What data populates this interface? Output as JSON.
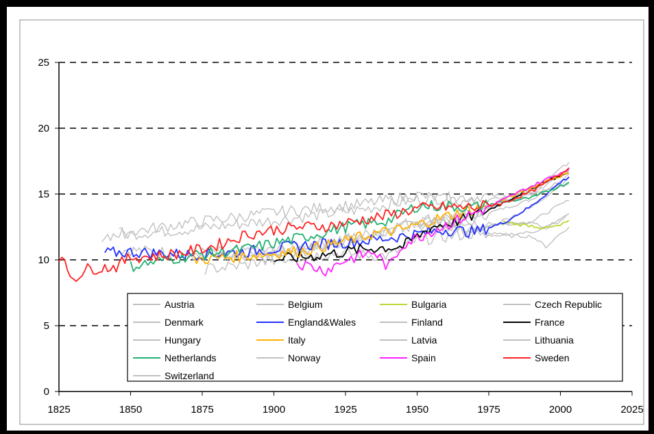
{
  "chart_data": {
    "type": "line",
    "title": "",
    "xlabel": "",
    "ylabel": "",
    "xlim": [
      1825,
      2025
    ],
    "ylim": [
      0,
      25
    ],
    "xticks": [
      1825,
      1850,
      1875,
      1900,
      1925,
      1950,
      1975,
      2000,
      2025
    ],
    "yticks": [
      0,
      5,
      10,
      15,
      20,
      25
    ],
    "grid": "horizontal-dashed",
    "legend_position": "bottom-right",
    "series": [
      {
        "name": "Austria",
        "color": "#c0c0c0",
        "x": [
          1870,
          1890,
          1910,
          1930,
          1950,
          1970,
          1990,
          2003
        ],
        "y": [
          10.3,
          10.4,
          10.8,
          11.5,
          12.8,
          13.2,
          14.6,
          16.5
        ]
      },
      {
        "name": "Belgium",
        "color": "#c0c0c0",
        "x": [
          1845,
          1870,
          1900,
          1930,
          1950,
          1970,
          1990,
          2003
        ],
        "y": [
          10.8,
          10.5,
          10.7,
          11.8,
          13.0,
          13.5,
          15.0,
          16.8
        ]
      },
      {
        "name": "Bulgaria",
        "color": "#b8d830",
        "x": [
          1980,
          1985,
          1990,
          1995,
          2000,
          2003
        ],
        "y": [
          12.9,
          12.7,
          12.6,
          12.4,
          12.6,
          13.0
        ]
      },
      {
        "name": "Czech Republic",
        "color": "#c0c0c0",
        "x": [
          1950,
          1960,
          1970,
          1980,
          1990,
          2000,
          2003
        ],
        "y": [
          12.8,
          13.0,
          12.6,
          12.7,
          12.9,
          14.2,
          14.5
        ]
      },
      {
        "name": "Denmark",
        "color": "#c0c0c0",
        "x": [
          1840,
          1870,
          1900,
          1930,
          1950,
          1970,
          1990,
          2003
        ],
        "y": [
          11.8,
          12.3,
          13.0,
          13.8,
          14.6,
          14.8,
          15.0,
          15.8
        ]
      },
      {
        "name": "England&Wales",
        "color": "#2030ff",
        "x": [
          1841,
          1850,
          1870,
          1890,
          1910,
          1930,
          1945,
          1960,
          1970,
          1980,
          1990,
          2000,
          2003
        ],
        "y": [
          10.5,
          10.6,
          10.4,
          10.6,
          11.1,
          11.4,
          11.8,
          12.3,
          12.1,
          12.8,
          14.1,
          15.9,
          16.3
        ]
      },
      {
        "name": "Finland",
        "color": "#c0c0c0",
        "x": [
          1880,
          1900,
          1920,
          1940,
          1950,
          1970,
          1990,
          2003
        ],
        "y": [
          10.2,
          10.0,
          10.5,
          10.3,
          11.5,
          12.0,
          14.0,
          16.2
        ]
      },
      {
        "name": "France",
        "color": "#000000",
        "x": [
          1900,
          1910,
          1925,
          1935,
          1945,
          1955,
          1965,
          1975,
          1985,
          1995,
          2003
        ],
        "y": [
          10.0,
          10.2,
          10.6,
          10.9,
          11.0,
          12.5,
          13.0,
          13.8,
          14.9,
          16.0,
          16.6
        ]
      },
      {
        "name": "Hungary",
        "color": "#c0c0c0",
        "x": [
          1950,
          1960,
          1970,
          1980,
          1990,
          2000,
          2003
        ],
        "y": [
          12.2,
          12.6,
          12.1,
          11.9,
          12.1,
          12.9,
          13.5
        ]
      },
      {
        "name": "Italy",
        "color": "#ffb000",
        "x": [
          1872,
          1890,
          1910,
          1925,
          1935,
          1945,
          1955,
          1965,
          1975,
          1985,
          1995,
          2003
        ],
        "y": [
          10.0,
          10.3,
          10.7,
          11.4,
          12.0,
          12.3,
          13.0,
          13.6,
          14.1,
          15.0,
          16.0,
          16.6
        ]
      },
      {
        "name": "Latvia",
        "color": "#c0c0c0",
        "x": [
          1960,
          1970,
          1980,
          1990,
          1995,
          2000,
          2003
        ],
        "y": [
          12.6,
          12.0,
          11.8,
          11.8,
          11.0,
          12.0,
          12.5
        ]
      },
      {
        "name": "Lithuania",
        "color": "#c0c0c0",
        "x": [
          1960,
          1970,
          1980,
          1990,
          1995,
          2000,
          2003
        ],
        "y": [
          13.0,
          12.8,
          12.7,
          12.8,
          12.4,
          13.2,
          13.5
        ]
      },
      {
        "name": "Netherlands",
        "color": "#20b070",
        "x": [
          1850,
          1870,
          1890,
          1910,
          1925,
          1940,
          1950,
          1960,
          1970,
          1980,
          1990,
          2003
        ],
        "y": [
          9.5,
          10.3,
          10.8,
          11.7,
          12.5,
          13.0,
          14.1,
          14.1,
          14.0,
          14.4,
          14.7,
          15.9
        ]
      },
      {
        "name": "Norway",
        "color": "#c0c0c0",
        "x": [
          1846,
          1870,
          1900,
          1930,
          1950,
          1970,
          1990,
          2003
        ],
        "y": [
          12.0,
          12.8,
          13.6,
          14.2,
          14.9,
          14.3,
          15.2,
          16.8
        ]
      },
      {
        "name": "Spain",
        "color": "#ff20ff",
        "x": [
          1908,
          1918,
          1925,
          1935,
          1940,
          1945,
          1955,
          1965,
          1975,
          1985,
          1995,
          2003
        ],
        "y": [
          9.8,
          9.2,
          10.0,
          10.6,
          9.4,
          11.2,
          12.2,
          13.1,
          14.0,
          15.1,
          16.1,
          16.9
        ]
      },
      {
        "name": "Sweden",
        "color": "#ff2020",
        "x": [
          1825,
          1830,
          1835,
          1845,
          1850,
          1860,
          1870,
          1880,
          1890,
          1900,
          1910,
          1920,
          1930,
          1940,
          1950,
          1960,
          1970,
          1980,
          1990,
          2000,
          2003
        ],
        "y": [
          10.3,
          8.6,
          9.3,
          9.5,
          10.2,
          10.3,
          10.6,
          11.1,
          11.9,
          12.3,
          12.5,
          12.6,
          13.0,
          13.4,
          13.9,
          14.0,
          14.0,
          14.3,
          15.2,
          16.5,
          17.0
        ]
      },
      {
        "name": "Switzerland",
        "color": "#c0c0c0",
        "x": [
          1876,
          1890,
          1910,
          1930,
          1950,
          1970,
          1990,
          2003
        ],
        "y": [
          9.3,
          9.6,
          10.7,
          11.8,
          12.5,
          13.5,
          15.3,
          17.4
        ]
      }
    ]
  }
}
